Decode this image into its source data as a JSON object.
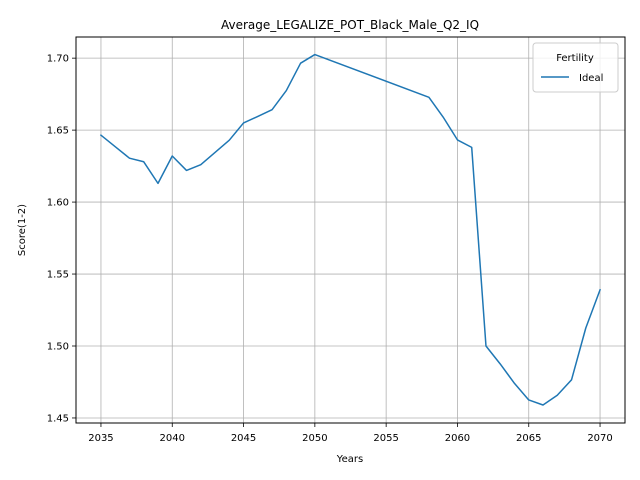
{
  "chart_data": {
    "type": "line",
    "title": "Average_LEGALIZE_POT_Black_Male_Q2_IQ",
    "xlabel": "Years",
    "ylabel": "Score(1-2)",
    "xlim": [
      2033.25,
      2071.75
    ],
    "ylim": [
      1.4465,
      1.7147
    ],
    "xticks": [
      2035,
      2040,
      2045,
      2050,
      2055,
      2060,
      2065,
      2070
    ],
    "yticks": [
      1.45,
      1.5,
      1.55,
      1.6,
      1.65,
      1.7
    ],
    "grid": true,
    "legend": {
      "title": "Fertility",
      "position": "top-right"
    },
    "series": [
      {
        "name": "Ideal",
        "color": "#1f77b4",
        "x": [
          2035,
          2036,
          2037,
          2038,
          2039,
          2040,
          2041,
          2042,
          2043,
          2044,
          2045,
          2046,
          2047,
          2048,
          2049,
          2050,
          2058,
          2059,
          2060,
          2061,
          2062,
          2063,
          2064,
          2065,
          2066,
          2067,
          2068,
          2069,
          2070
        ],
        "y": [
          1.6465,
          1.6385,
          1.6305,
          1.628,
          1.613,
          1.632,
          1.622,
          1.626,
          1.6345,
          1.643,
          1.655,
          1.6595,
          1.6642,
          1.6775,
          1.6965,
          1.7025,
          1.6728,
          1.659,
          1.6432,
          1.638,
          1.5,
          1.4875,
          1.474,
          1.4625,
          1.459,
          1.4658,
          1.4765,
          1.5125,
          1.539
        ]
      }
    ]
  }
}
